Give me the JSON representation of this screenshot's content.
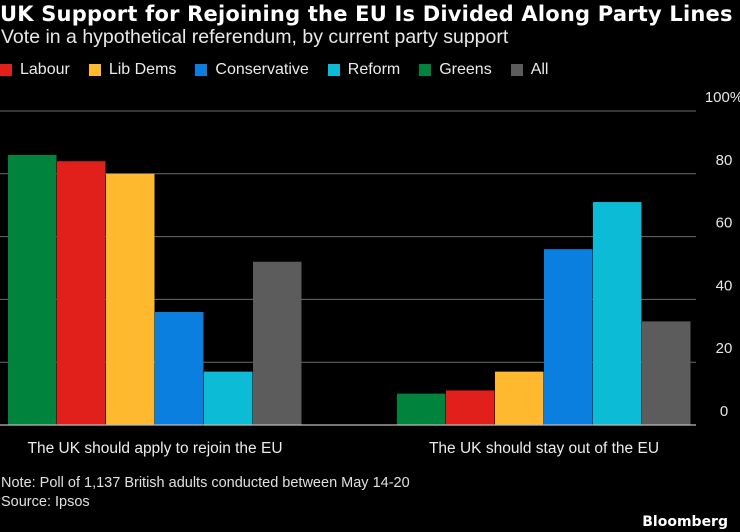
{
  "header": {
    "title": "UK Support for Rejoining the EU Is Divided Along Party Lines",
    "subtitle": "Vote in a hypothetical referendum, by current party support"
  },
  "footer": {
    "note": "Note: Poll of 1,137 British adults conducted between May 14-20",
    "source": "Source: Ipsos",
    "brand": "Bloomberg"
  },
  "chart_data": {
    "type": "bar",
    "categories": [
      "The UK should apply to rejoin the EU",
      "The UK should stay out of the EU"
    ],
    "series": [
      {
        "name": "Greens",
        "color": "#00843d",
        "values": [
          86,
          10
        ]
      },
      {
        "name": "Labour",
        "color": "#e1201c",
        "values": [
          84,
          11
        ]
      },
      {
        "name": "Lib Dems",
        "color": "#ffb92e",
        "values": [
          80,
          17
        ]
      },
      {
        "name": "Conservative",
        "color": "#0a7fe0",
        "values": [
          36,
          56
        ]
      },
      {
        "name": "Reform",
        "color": "#0cbcd6",
        "values": [
          17,
          71
        ]
      },
      {
        "name": "All",
        "color": "#5c5c5c",
        "values": [
          52,
          33
        ]
      }
    ],
    "legend": [
      "Labour",
      "Lib Dems",
      "Conservative",
      "Reform",
      "Greens",
      "All"
    ],
    "ylim": [
      0,
      100
    ],
    "yticks": [
      0,
      20,
      40,
      60,
      80,
      100
    ],
    "ytick_labels": [
      "0",
      "20",
      "40",
      "60",
      "80",
      "100%"
    ],
    "xlabel": "",
    "ylabel": "",
    "grid": true,
    "legend_position": "top-left"
  }
}
